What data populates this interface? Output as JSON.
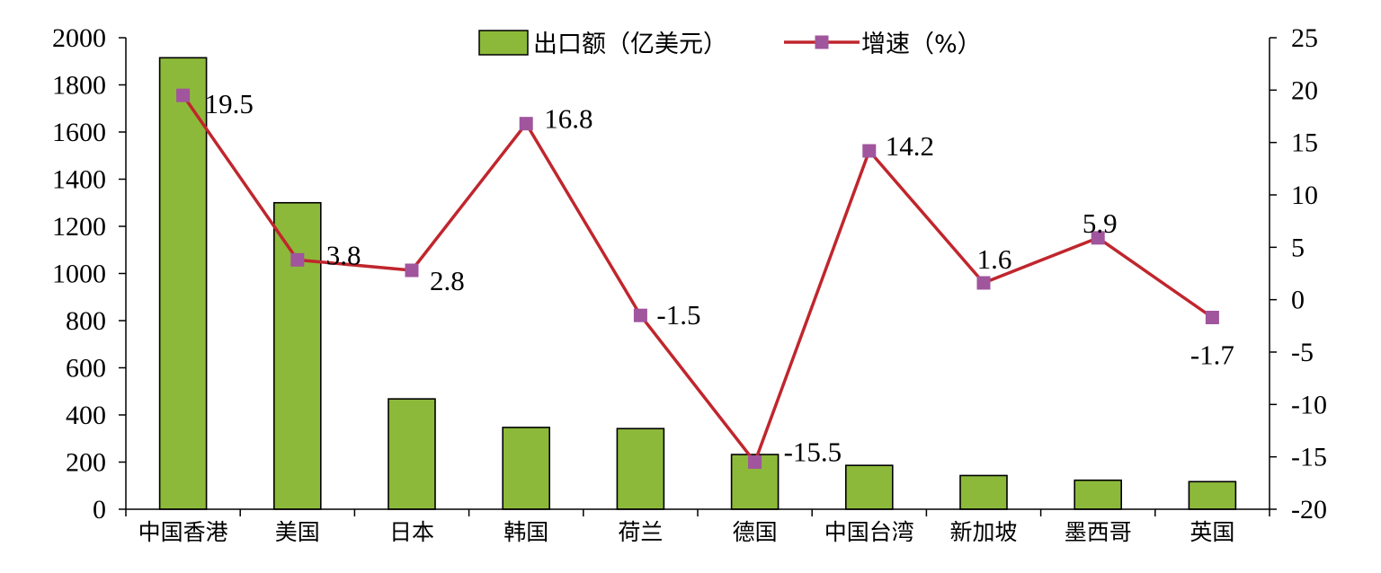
{
  "chart_data": {
    "type": "bar",
    "categories": [
      "中国香港",
      "美国",
      "日本",
      "韩国",
      "荷兰",
      "德国",
      "中国台湾",
      "新加坡",
      "墨西哥",
      "英国"
    ],
    "series": [
      {
        "name": "出口额（亿美元）",
        "type": "bar",
        "axis": "left",
        "color": "#8DB93A",
        "values": [
          1915,
          1300,
          468,
          347,
          342,
          232,
          186,
          143,
          123,
          117
        ]
      },
      {
        "name": "增速（%）",
        "type": "line",
        "axis": "right",
        "color": "#C0262D",
        "marker_color": "#A0559D",
        "values": [
          19.5,
          3.8,
          2.8,
          16.8,
          -1.5,
          -15.5,
          14.2,
          1.6,
          5.9,
          -1.7
        ],
        "labels": [
          "19.5",
          "3.8",
          "2.8",
          "16.8",
          "-1.5",
          "-15.5",
          "14.2",
          "1.6",
          "5.9",
          "-1.7"
        ]
      }
    ],
    "y_left": {
      "min": 0,
      "max": 2000,
      "step": 200,
      "ticks": [
        "0",
        "200",
        "400",
        "600",
        "800",
        "1000",
        "1200",
        "1400",
        "1600",
        "1800",
        "2000"
      ]
    },
    "y_right": {
      "min": -20,
      "max": 25,
      "step": 5,
      "ticks": [
        "-20",
        "-15",
        "-10",
        "-5",
        "0",
        "5",
        "10",
        "15",
        "20",
        "25"
      ]
    },
    "legend": {
      "position": "top-center",
      "items": [
        "出口额（亿美元）",
        "增速（%）"
      ]
    },
    "grid": false,
    "title": "",
    "xlabel": "",
    "ylabel": ""
  }
}
